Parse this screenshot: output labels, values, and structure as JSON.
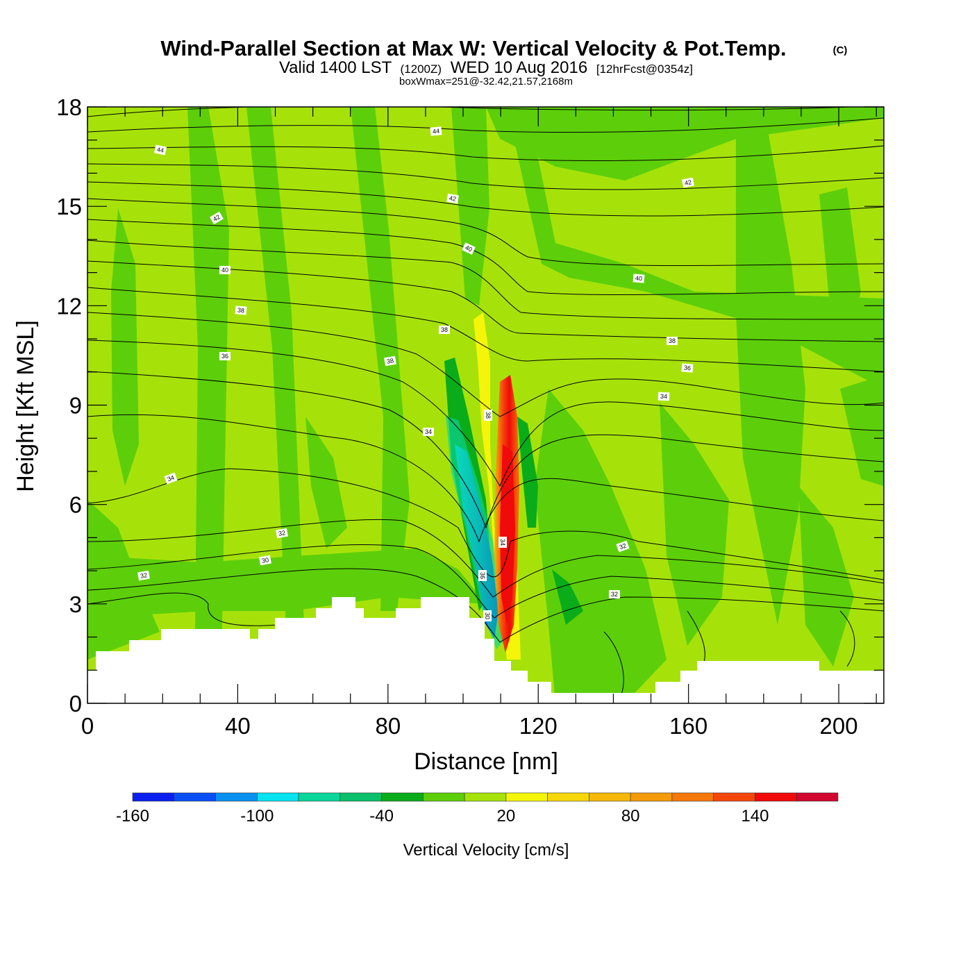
{
  "chart_data": {
    "type": "heatmap",
    "title": "Wind-Parallel Section at Max W: Vertical Velocity & Pot.Temp.",
    "title_mark": "(C)",
    "subtitle_parts": [
      "Valid 1400 LST",
      "(1200Z)",
      "WED 10 Aug 2016",
      "[12hrFcst@0354z]"
    ],
    "subtitle2": "boxWmax=251@-32.42,21.57,2168m",
    "xlabel": "Distance [nm]",
    "ylabel": "Height [Kft MSL]",
    "xlim": [
      0,
      212
    ],
    "ylim": [
      0,
      18
    ],
    "x_ticks": [
      "0",
      "40",
      "80",
      "120",
      "160",
      "200"
    ],
    "y_ticks": [
      "0",
      "3",
      "6",
      "9",
      "12",
      "15",
      "18"
    ],
    "colorbar": {
      "label": "Vertical Velocity [cm/s]",
      "tick_labels": [
        "-160",
        "-100",
        "-40",
        "20",
        "80",
        "140"
      ],
      "tick_values": [
        -160,
        -100,
        -40,
        20,
        80,
        140
      ],
      "levels": [
        -160,
        -140,
        -120,
        -100,
        -80,
        -60,
        -40,
        -20,
        0,
        20,
        40,
        60,
        80,
        100,
        120,
        140,
        160,
        180
      ],
      "colors": [
        "#0a1ff0",
        "#0a4ff5",
        "#0a90f0",
        "#06e3f0",
        "#0ad69a",
        "#0ac06a",
        "#0aac1a",
        "#5ccf0a",
        "#a6e20a",
        "#f5f50a",
        "#f5d70a",
        "#f5b80a",
        "#f59a0a",
        "#f5780a",
        "#f5460a",
        "#f00a0a",
        "#d2062e"
      ]
    },
    "contour_labels": [
      "44",
      "44",
      "42",
      "42",
      "42",
      "40",
      "40",
      "40",
      "38",
      "38",
      "38",
      "38",
      "38",
      "36",
      "36",
      "36",
      "34",
      "34",
      "34",
      "34",
      "32",
      "32",
      "32",
      "32",
      "30",
      "30",
      "30",
      "30",
      "30"
    ],
    "max_updraft_cm_s": 251,
    "grid": false
  }
}
